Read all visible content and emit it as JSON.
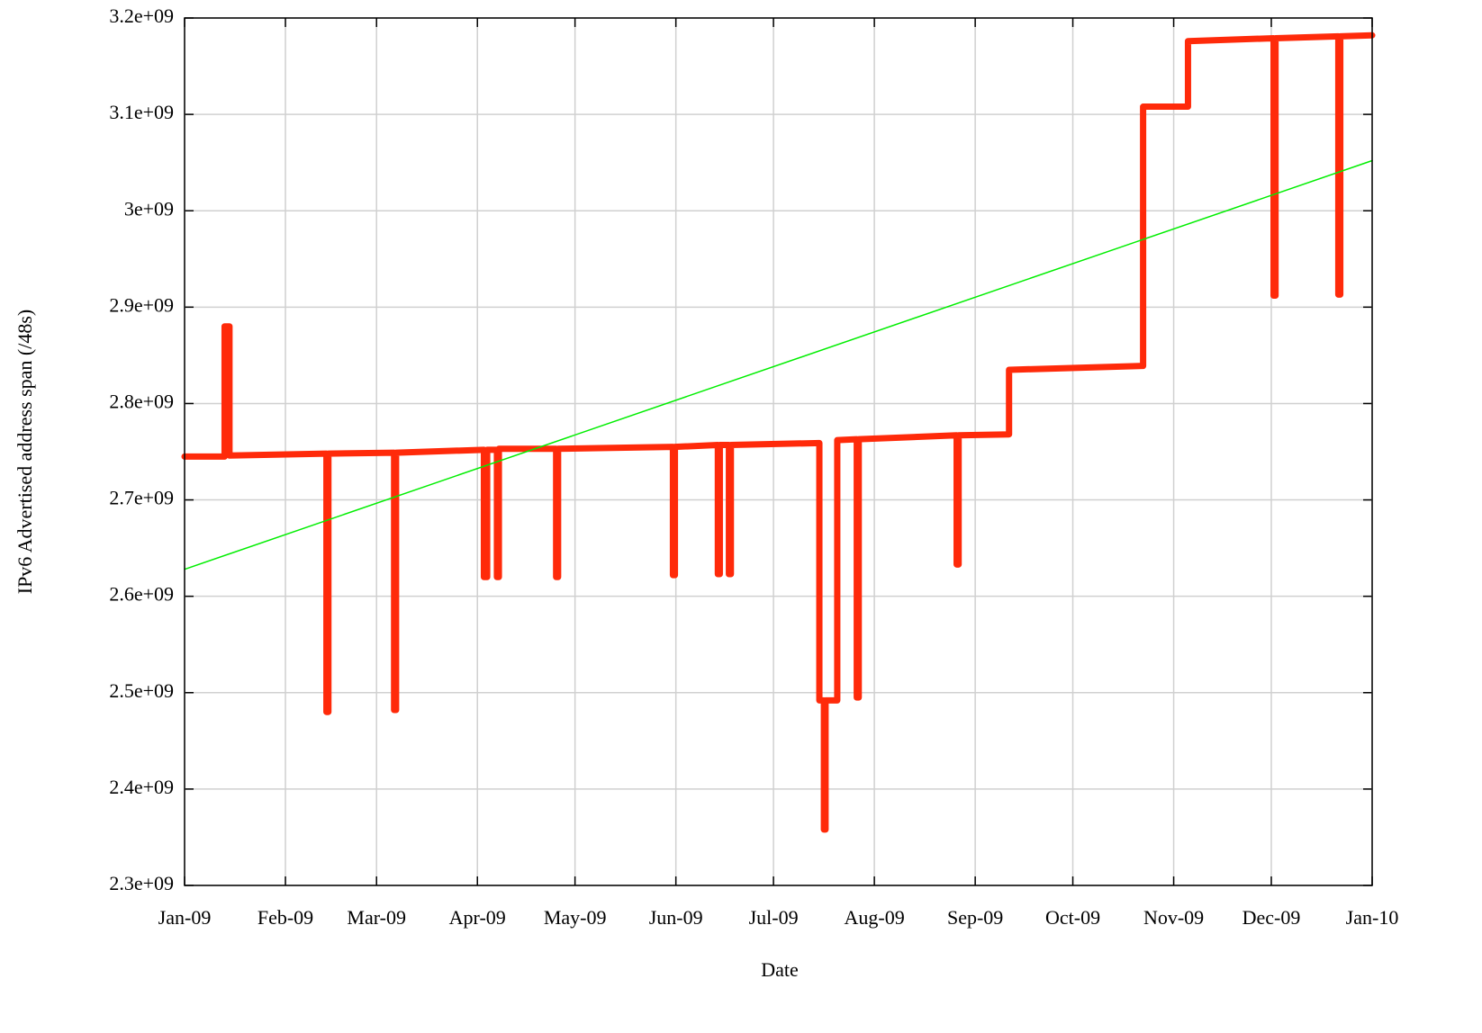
{
  "chart_data": {
    "type": "line",
    "x_label": "Date",
    "y_label": "IPv6 Advertised address span (/48s)",
    "xlim": [
      0,
      365
    ],
    "xticks": [
      {
        "value": 0,
        "label": "Jan-09"
      },
      {
        "value": 31,
        "label": "Feb-09"
      },
      {
        "value": 59,
        "label": "Mar-09"
      },
      {
        "value": 90,
        "label": "Apr-09"
      },
      {
        "value": 120,
        "label": "May-09"
      },
      {
        "value": 151,
        "label": "Jun-09"
      },
      {
        "value": 181,
        "label": "Jul-09"
      },
      {
        "value": 212,
        "label": "Aug-09"
      },
      {
        "value": 243,
        "label": "Sep-09"
      },
      {
        "value": 273,
        "label": "Oct-09"
      },
      {
        "value": 304,
        "label": "Nov-09"
      },
      {
        "value": 334,
        "label": "Dec-09"
      },
      {
        "value": 365,
        "label": "Jan-10"
      }
    ],
    "ylim": [
      2300000000.0,
      3200000000.0
    ],
    "yticks": [
      {
        "value": 2300000000.0,
        "label": "2.3e+09"
      },
      {
        "value": 2400000000.0,
        "label": "2.4e+09"
      },
      {
        "value": 2500000000.0,
        "label": "2.5e+09"
      },
      {
        "value": 2600000000.0,
        "label": "2.6e+09"
      },
      {
        "value": 2700000000.0,
        "label": "2.7e+09"
      },
      {
        "value": 2800000000.0,
        "label": "2.8e+09"
      },
      {
        "value": 2900000000.0,
        "label": "2.9e+09"
      },
      {
        "value": 3000000000.0,
        "label": "3e+09"
      },
      {
        "value": 3100000000.0,
        "label": "3.1e+09"
      },
      {
        "value": 3200000000.0,
        "label": "3.2e+09"
      }
    ],
    "grid": true,
    "series": [
      {
        "color": "#ff2a0a",
        "width": 7,
        "x": [
          0,
          12.3,
          12.3,
          13.8,
          13.8,
          43.6,
          43.6,
          44.2,
          44.2,
          64.4,
          64.4,
          65,
          65,
          92,
          92,
          93,
          93,
          96,
          96,
          96.6,
          96.6,
          114.2,
          114.2,
          114.8,
          114.8,
          150.1,
          150.1,
          150.7,
          150.7,
          163.9,
          163.9,
          164.5,
          164.5,
          167.3,
          167.3,
          167.9,
          167.9,
          195.1,
          195.1,
          196.5,
          196.5,
          197,
          197,
          200.6,
          200.6,
          206.6,
          206.6,
          207.2,
          207.2,
          237.3,
          237.3,
          237.9,
          237.9,
          253.4,
          253.4,
          294.6,
          294.6,
          308.4,
          308.4,
          334.7,
          334.7,
          335.3,
          335.3,
          354.6,
          354.6,
          355.2,
          355.2,
          365
        ],
        "values": [
          2745000000.0,
          2745000000.0,
          2880000000.0,
          2880000000.0,
          2746000000.0,
          2748000000.0,
          2480000000.0,
          2480000000.0,
          2748000000.0,
          2749000000.0,
          2482000000.0,
          2482000000.0,
          2749000000.0,
          2752000000.0,
          2620000000.0,
          2620000000.0,
          2752000000.0,
          2752000000.0,
          2620000000.0,
          2620000000.0,
          2753000000.0,
          2753000000.0,
          2620000000.0,
          2620000000.0,
          2753000000.0,
          2755000000.0,
          2622000000.0,
          2622000000.0,
          2755000000.0,
          2757000000.0,
          2623000000.0,
          2623000000.0,
          2757000000.0,
          2757000000.0,
          2623000000.0,
          2623000000.0,
          2757000000.0,
          2759000000.0,
          2492000000.0,
          2492000000.0,
          2358000000.0,
          2358000000.0,
          2492000000.0,
          2492000000.0,
          2762000000.0,
          2763000000.0,
          2495000000.0,
          2495000000.0,
          2763000000.0,
          2767000000.0,
          2633000000.0,
          2633000000.0,
          2767000000.0,
          2768000000.0,
          2835000000.0,
          2839000000.0,
          3108000000.0,
          3108000000.0,
          3176000000.0,
          3179000000.0,
          2912000000.0,
          2912000000.0,
          3179000000.0,
          3181000000.0,
          2913000000.0,
          2913000000.0,
          3181000000.0,
          3182000000.0
        ]
      },
      {
        "color": "#00ee00",
        "width": 1.5,
        "x": [
          0,
          365
        ],
        "values": [
          2628000000.0,
          3052000000.0
        ]
      }
    ]
  }
}
